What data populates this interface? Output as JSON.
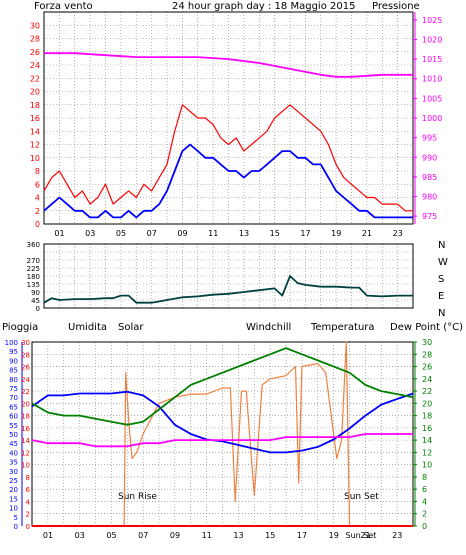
{
  "title": "24 hour graph day : 18 Maggio 2015",
  "colors": {
    "red": "#ff0000",
    "blue": "#0000ff",
    "magenta": "#ff00ff",
    "dark_teal": "#004040",
    "green": "#008000",
    "orange": "#f08040",
    "olive": "#808000",
    "teal": "#008080",
    "grid": "#808080",
    "frame": "#000000"
  },
  "chart_data": [
    {
      "type": "line",
      "panel": "wind-pressure",
      "left_axis_label": "Forza vento",
      "right_axis_label": "Pressione",
      "left_ylim": [
        0,
        32
      ],
      "left_ticks": [
        "0",
        "2",
        "4",
        "6",
        "8",
        "10",
        "12",
        "14",
        "16",
        "18",
        "20",
        "22",
        "24",
        "26",
        "28",
        "30"
      ],
      "right_ylim": [
        973,
        1027
      ],
      "right_ticks": [
        "975",
        "980",
        "985",
        "990",
        "995",
        "1000",
        "1005",
        "1010",
        "1015",
        "1020",
        "1025"
      ],
      "x_ticks": [
        "01",
        "03",
        "05",
        "07",
        "09",
        "11",
        "13",
        "15",
        "17",
        "19",
        "21",
        "23"
      ],
      "grid": true,
      "series": [
        {
          "color": "#ff0000",
          "axis": "left",
          "x": [
            0,
            0.5,
            1,
            1.5,
            2,
            2.5,
            3,
            3.5,
            4,
            4.5,
            5,
            5.5,
            6,
            6.5,
            7,
            7.5,
            8,
            8.5,
            9,
            9.5,
            10,
            10.5,
            11,
            11.5,
            12,
            12.5,
            13,
            13.5,
            14,
            14.5,
            15,
            15.5,
            16,
            16.5,
            17,
            17.5,
            18,
            18.5,
            19,
            19.5,
            20,
            20.5,
            21,
            21.5,
            22,
            22.5,
            23,
            23.5,
            24
          ],
          "y": [
            5,
            7,
            8,
            6,
            4,
            5,
            3,
            4,
            6,
            3,
            4,
            5,
            4,
            6,
            5,
            7,
            9,
            14,
            18,
            17,
            16,
            16,
            15,
            13,
            12,
            13,
            11,
            12,
            13,
            14,
            16,
            17,
            18,
            17,
            16,
            15,
            14,
            12,
            9,
            7,
            6,
            5,
            4,
            4,
            3,
            3,
            3,
            2,
            2
          ]
        },
        {
          "color": "#0000ff",
          "axis": "left",
          "x": [
            0,
            0.5,
            1,
            1.5,
            2,
            2.5,
            3,
            3.5,
            4,
            4.5,
            5,
            5.5,
            6,
            6.5,
            7,
            7.5,
            8,
            8.5,
            9,
            9.5,
            10,
            10.5,
            11,
            11.5,
            12,
            12.5,
            13,
            13.5,
            14,
            14.5,
            15,
            15.5,
            16,
            16.5,
            17,
            17.5,
            18,
            18.5,
            19,
            19.5,
            20,
            20.5,
            21,
            21.5,
            22,
            22.5,
            23,
            23.5,
            24
          ],
          "y": [
            2,
            3,
            4,
            3,
            2,
            2,
            1,
            1,
            2,
            1,
            1,
            2,
            1,
            2,
            2,
            3,
            5,
            8,
            11,
            12,
            11,
            10,
            10,
            9,
            8,
            8,
            7,
            8,
            8,
            9,
            10,
            11,
            11,
            10,
            10,
            9,
            9,
            7,
            5,
            4,
            3,
            2,
            2,
            1,
            1,
            1,
            1,
            1,
            1
          ]
        },
        {
          "color": "#ff00ff",
          "axis": "right",
          "x": [
            0,
            2,
            4,
            6,
            8,
            10,
            12,
            14,
            16,
            18,
            19,
            20,
            22,
            24
          ],
          "y": [
            1016.5,
            1016.5,
            1016,
            1015.5,
            1015.5,
            1015.5,
            1015,
            1014,
            1012.5,
            1011,
            1010.5,
            1010.5,
            1011,
            1011
          ]
        }
      ]
    },
    {
      "type": "line",
      "panel": "wind-direction",
      "ylim": [
        0,
        360
      ],
      "left_ticks": [
        "0",
        "45",
        "90",
        "135",
        "180",
        "225",
        "270",
        "360"
      ],
      "right_labels": [
        "N",
        "W",
        "S",
        "E",
        "N"
      ],
      "grid": true,
      "series": [
        {
          "color": "#004040",
          "x": [
            0,
            0.5,
            1,
            2,
            3,
            4,
            4.5,
            5,
            5.5,
            6,
            7,
            8,
            9,
            10,
            11,
            12,
            13,
            14,
            15,
            15.5,
            16,
            16.5,
            17,
            18,
            19,
            20,
            20.5,
            21,
            22,
            23,
            24
          ],
          "y": [
            30,
            55,
            45,
            50,
            50,
            55,
            55,
            70,
            70,
            30,
            30,
            45,
            60,
            65,
            75,
            80,
            90,
            100,
            110,
            70,
            180,
            140,
            130,
            120,
            120,
            115,
            115,
            70,
            65,
            70,
            70
          ]
        }
      ]
    },
    {
      "type": "line",
      "panel": "temperature-humidity",
      "labels": {
        "rain": "Pioggia",
        "humidity": "Umidita",
        "solar": "Solar",
        "windchill": "Windchill",
        "temperature": "Temperatura",
        "dewpoint": "Dew Point (°C)"
      },
      "annotations": [
        "Sun Rise",
        "Sun Set"
      ],
      "left_ylim": [
        0,
        100
      ],
      "left_ticks": [
        "0",
        "5",
        "10",
        "15",
        "20",
        "25",
        "30",
        "35",
        "40",
        "45",
        "50",
        "55",
        "60",
        "65",
        "70",
        "75",
        "80",
        "85",
        "90",
        "95",
        "100"
      ],
      "inner_ylim": [
        0,
        30
      ],
      "inner_ticks": [
        "0",
        "2",
        "4",
        "6",
        "8",
        "10",
        "12",
        "14",
        "16",
        "18",
        "20",
        "22",
        "24",
        "26",
        "28",
        "30"
      ],
      "right_ticks": [
        "0",
        "2",
        "4",
        "6",
        "8",
        "10",
        "12",
        "14",
        "16",
        "18",
        "20",
        "22",
        "24",
        "26",
        "28",
        "30"
      ],
      "x_ticks": [
        "01",
        "03",
        "05",
        "07",
        "09",
        "11",
        "13",
        "15",
        "17",
        "19",
        "Sun Set",
        "21",
        "23"
      ],
      "grid": true,
      "series": [
        {
          "color": "#0000ff",
          "axis": "left",
          "x": [
            0,
            1,
            2,
            3,
            4,
            5,
            6,
            7,
            8,
            9,
            10,
            11,
            12,
            13,
            14,
            15,
            16,
            17,
            18,
            19,
            20,
            21,
            22,
            23,
            24
          ],
          "y": [
            65,
            71,
            71,
            72,
            72,
            72,
            73,
            71,
            65,
            55,
            50,
            47,
            46,
            44,
            42,
            40,
            40,
            41,
            43,
            47,
            53,
            60,
            66,
            69,
            72
          ]
        },
        {
          "color": "#008000",
          "axis": "right",
          "x": [
            0,
            1,
            2,
            3,
            4,
            5,
            6,
            7,
            8,
            9,
            10,
            11,
            12,
            13,
            14,
            15,
            16,
            17,
            18,
            19,
            20,
            21,
            22,
            23,
            24
          ],
          "y": [
            20,
            18.5,
            18,
            18,
            17.5,
            17,
            16.5,
            17,
            19,
            21,
            23,
            24,
            25,
            26,
            27,
            28,
            29,
            28,
            27,
            26,
            25,
            23,
            22,
            21.5,
            21
          ]
        },
        {
          "color": "#ff00ff",
          "axis": "right",
          "x": [
            0,
            1,
            2,
            3,
            4,
            5,
            6,
            7,
            8,
            9,
            10,
            11,
            12,
            13,
            14,
            15,
            16,
            17,
            18,
            19,
            20,
            21,
            22,
            23,
            24
          ],
          "y": [
            14,
            13.5,
            13.5,
            13.5,
            13,
            13,
            13,
            13.5,
            13.5,
            14,
            14,
            14,
            14,
            14,
            14,
            14,
            14.5,
            14.5,
            14.5,
            14.5,
            14.5,
            15,
            15,
            15,
            15
          ]
        },
        {
          "color": "#f08040",
          "axis": "right",
          "x": [
            0,
            5.8,
            5.9,
            6.1,
            6.3,
            6.6,
            7,
            8,
            9,
            10,
            11,
            12,
            12.5,
            12.8,
            13.2,
            13.5,
            14,
            14.5,
            15,
            16,
            16.6,
            16.8,
            17,
            18,
            18.5,
            19.2,
            19.5,
            19.8,
            20
          ],
          "y": [
            0,
            0,
            25,
            17,
            11,
            12,
            15,
            20,
            21,
            21.5,
            21.5,
            22.5,
            22.5,
            4,
            22,
            22,
            5,
            23,
            24,
            24.5,
            26,
            7,
            26,
            26.5,
            25,
            11,
            14,
            30,
            0
          ]
        },
        {
          "color": "#ff0000",
          "axis": "inner",
          "x": [
            0,
            20,
            20.1,
            24
          ],
          "y": [
            0,
            0,
            0,
            0
          ]
        }
      ]
    }
  ]
}
